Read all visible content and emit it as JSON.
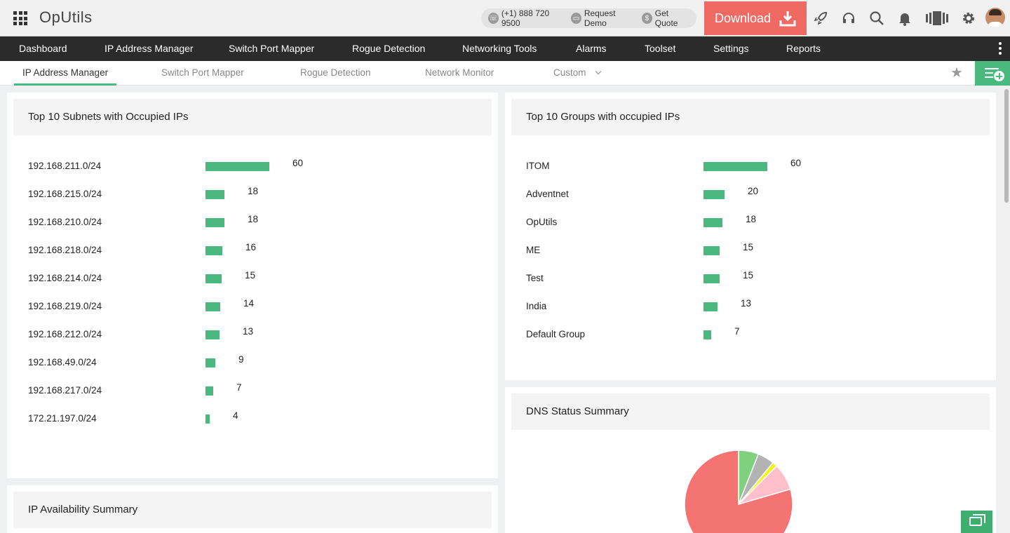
{
  "header": {
    "app_title": "OpUtils",
    "phone": "(+1) 888 720 9500",
    "request_demo": "Request Demo",
    "get_quote": "Get Quote",
    "download_label": "Download",
    "accent_color": "#f06a64"
  },
  "mainnav": {
    "items": [
      {
        "label": "Dashboard"
      },
      {
        "label": "IP Address Manager"
      },
      {
        "label": "Switch Port Mapper"
      },
      {
        "label": "Rogue Detection"
      },
      {
        "label": "Networking Tools"
      },
      {
        "label": "Alarms"
      },
      {
        "label": "Toolset"
      },
      {
        "label": "Settings"
      },
      {
        "label": "Reports"
      }
    ]
  },
  "subtabs": {
    "items": [
      {
        "label": "IP Address Manager",
        "active": true
      },
      {
        "label": "Switch Port Mapper",
        "active": false
      },
      {
        "label": "Rogue Detection",
        "active": false
      },
      {
        "label": "Network Monitor",
        "active": false
      },
      {
        "label": "Custom",
        "active": false
      }
    ]
  },
  "widgets": {
    "subnets": {
      "title": "Top 10 Subnets with Occupied IPs",
      "bar_color": "#4bb97f",
      "rows": [
        {
          "label": "192.168.211.0/24",
          "value": 60
        },
        {
          "label": "192.168.215.0/24",
          "value": 18
        },
        {
          "label": "192.168.210.0/24",
          "value": 18
        },
        {
          "label": "192.168.218.0/24",
          "value": 16
        },
        {
          "label": "192.168.214.0/24",
          "value": 15
        },
        {
          "label": "192.168.219.0/24",
          "value": 14
        },
        {
          "label": "192.168.212.0/24",
          "value": 13
        },
        {
          "label": "192.168.49.0/24",
          "value": 9
        },
        {
          "label": "192.168.217.0/24",
          "value": 7
        },
        {
          "label": "172.21.197.0/24",
          "value": 4
        }
      ]
    },
    "groups": {
      "title": "Top 10 Groups with occupied IPs",
      "bar_color": "#4bb97f",
      "rows": [
        {
          "label": "ITOM",
          "value": 60
        },
        {
          "label": "Adventnet",
          "value": 20
        },
        {
          "label": "OpUtils",
          "value": 18
        },
        {
          "label": "ME",
          "value": 15
        },
        {
          "label": "Test",
          "value": 15
        },
        {
          "label": "India",
          "value": 13
        },
        {
          "label": "Default Group",
          "value": 7
        }
      ]
    },
    "ip_availability": {
      "title": "IP Availability Summary"
    },
    "dns": {
      "title": "DNS Status Summary",
      "slices": [
        {
          "value": 6,
          "color": "#7fd17f"
        },
        {
          "value": 5,
          "color": "#b3b3b3"
        },
        {
          "value": 1.5,
          "color": "#f3f31a"
        },
        {
          "value": 8,
          "color": "#ffc0cb"
        },
        {
          "value": 79.5,
          "color": "#f47373"
        }
      ]
    }
  }
}
